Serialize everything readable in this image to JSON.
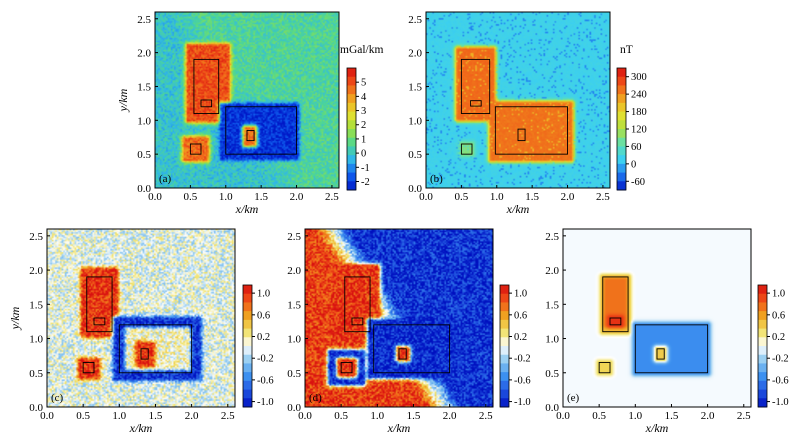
{
  "axis_tick_labels": [
    "0.0",
    "0.5",
    "1.0",
    "1.5",
    "2.0",
    "2.5"
  ],
  "chart_data": [
    {
      "type": "heatmap",
      "panel_label": "(a)",
      "xlabel": "x/km",
      "ylabel": "y/km",
      "xlim": [
        0,
        2.6
      ],
      "ylim": [
        0,
        2.6
      ],
      "unit": "mGal/km",
      "colorbar_ticks": [
        "5",
        "4",
        "3",
        "2",
        "1",
        "0",
        "-1",
        "-2"
      ],
      "colorbar_values": [
        5,
        4,
        3,
        2,
        1,
        0,
        -1,
        -2
      ],
      "colorbar_range": [
        -2.6,
        6
      ],
      "colorbar_colors": [
        "#0018c8",
        "#1060f0",
        "#30b8e8",
        "#50d890",
        "#a0e040",
        "#e8e030",
        "#f0a020",
        "#f05018",
        "#d81010"
      ],
      "field": {
        "background": -0.1,
        "background_east": 0.5,
        "noise": "random",
        "features": [
          {
            "shape": "rounded-rect",
            "x": [
              0.47,
              1.03
            ],
            "y": [
              1.0,
              2.1
            ],
            "value": 5
          },
          {
            "shape": "rounded-rect",
            "x": [
              0.95,
              2.0
            ],
            "y": [
              0.45,
              1.22
            ],
            "value": -2.2
          },
          {
            "shape": "rounded-rect",
            "x": [
              1.28,
              1.4
            ],
            "y": [
              0.65,
              0.88
            ],
            "value": 4.5
          },
          {
            "shape": "rounded-rect",
            "x": [
              0.42,
              0.73
            ],
            "y": [
              0.42,
              0.73
            ],
            "value": 4.6
          }
        ]
      },
      "boxes": [
        {
          "x": [
            0.55,
            0.9
          ],
          "y": [
            1.1,
            1.9
          ]
        },
        {
          "x": [
            0.65,
            0.8
          ],
          "y": [
            1.2,
            1.3
          ]
        },
        {
          "x": [
            1.0,
            2.0
          ],
          "y": [
            0.5,
            1.2
          ]
        },
        {
          "x": [
            1.3,
            1.4
          ],
          "y": [
            0.7,
            0.85
          ]
        },
        {
          "x": [
            0.5,
            0.65
          ],
          "y": [
            0.5,
            0.65
          ]
        }
      ]
    },
    {
      "type": "heatmap",
      "panel_label": "(b)",
      "xlabel": "x/km",
      "ylabel": "",
      "xlim": [
        0,
        2.6
      ],
      "ylim": [
        0,
        2.6
      ],
      "unit": "nT",
      "colorbar_ticks": [
        "300",
        "240",
        "180",
        "120",
        "60",
        "0",
        "-60"
      ],
      "colorbar_values": [
        300,
        240,
        180,
        120,
        60,
        0,
        -60
      ],
      "colorbar_range": [
        -90,
        330
      ],
      "colorbar_colors": [
        "#0018c8",
        "#1e78f0",
        "#3cd0f0",
        "#60e0b0",
        "#b0e040",
        "#e8e030",
        "#f0a020",
        "#f05018",
        "#d81010"
      ],
      "field": {
        "background": 20,
        "noise": "speckle",
        "features": [
          {
            "shape": "rounded-rect",
            "x": [
              0.45,
              0.95
            ],
            "y": [
              1.02,
              2.05
            ],
            "value": 260
          },
          {
            "shape": "rounded-rect",
            "x": [
              0.92,
              2.05
            ],
            "y": [
              0.42,
              1.25
            ],
            "value": 255
          },
          {
            "shape": "rounded-rect",
            "x": [
              0.5,
              0.65
            ],
            "y": [
              0.5,
              0.65
            ],
            "value": 90
          }
        ]
      },
      "boxes": [
        {
          "x": [
            0.5,
            0.9
          ],
          "y": [
            1.1,
            1.9
          ]
        },
        {
          "x": [
            0.63,
            0.78
          ],
          "y": [
            1.21,
            1.29
          ]
        },
        {
          "x": [
            0.98,
            2.0
          ],
          "y": [
            0.5,
            1.2
          ]
        },
        {
          "x": [
            1.3,
            1.4
          ],
          "y": [
            0.7,
            0.87
          ]
        },
        {
          "x": [
            0.5,
            0.65
          ],
          "y": [
            0.5,
            0.65
          ]
        }
      ]
    },
    {
      "type": "heatmap",
      "panel_label": "(c)",
      "xlabel": "x/km",
      "ylabel": "y/km",
      "xlim": [
        0,
        2.6
      ],
      "ylim": [
        0,
        2.6
      ],
      "unit": "",
      "colorbar_ticks": [
        "1.0",
        "0.6",
        "0.2",
        "-0.2",
        "-0.6",
        "-1.0"
      ],
      "colorbar_values": [
        1,
        0.6,
        0.2,
        -0.2,
        -0.6,
        -1
      ],
      "colorbar_range": [
        -1.1,
        1.15
      ],
      "colorbar_colors": [
        "#0010c0",
        "#1e50e0",
        "#3c90f0",
        "#8cc8f0",
        "#ffffff",
        "#f0e060",
        "#f0a020",
        "#f05018",
        "#d81010"
      ],
      "field": {
        "background": 0,
        "noise": "mottled",
        "features": [
          {
            "shape": "rounded-rect",
            "x": [
              0.5,
              0.95
            ],
            "y": [
              1.05,
              2.0
            ],
            "value": 1.0
          },
          {
            "shape": "rounded-rect",
            "x": [
              0.95,
              2.1
            ],
            "y": [
              0.42,
              1.28
            ],
            "value": -0.95
          },
          {
            "shape": "rounded-rect",
            "x": [
              1.12,
              1.95
            ],
            "y": [
              0.58,
              1.12
            ],
            "value": 0.1
          },
          {
            "shape": "rounded-rect",
            "x": [
              1.26,
              1.45
            ],
            "y": [
              0.62,
              0.92
            ],
            "value": 1.0
          },
          {
            "shape": "rounded-rect",
            "x": [
              0.46,
              0.7
            ],
            "y": [
              0.44,
              0.68
            ],
            "value": 1.0
          }
        ]
      },
      "boxes": [
        {
          "x": [
            0.55,
            0.9
          ],
          "y": [
            1.1,
            1.9
          ]
        },
        {
          "x": [
            0.65,
            0.8
          ],
          "y": [
            1.2,
            1.3
          ]
        },
        {
          "x": [
            1.0,
            2.0
          ],
          "y": [
            0.5,
            1.2
          ]
        },
        {
          "x": [
            1.3,
            1.4
          ],
          "y": [
            0.7,
            0.85
          ]
        },
        {
          "x": [
            0.5,
            0.65
          ],
          "y": [
            0.5,
            0.65
          ]
        }
      ]
    },
    {
      "type": "heatmap",
      "panel_label": "(d)",
      "xlabel": "x/km",
      "ylabel": "",
      "xlim": [
        0,
        2.6
      ],
      "ylim": [
        0,
        2.6
      ],
      "unit": "",
      "colorbar_ticks": [
        "1.0",
        "0.6",
        "0.2",
        "-0.2",
        "-0.6",
        "-1.0"
      ],
      "colorbar_values": [
        1,
        0.6,
        0.2,
        -0.2,
        -0.6,
        -1
      ],
      "colorbar_range": [
        -1.1,
        1.15
      ],
      "colorbar_colors": [
        "#0010c0",
        "#1e50e0",
        "#3c90f0",
        "#8cc8f0",
        "#ffffff",
        "#f0e060",
        "#f0a020",
        "#f05018",
        "#d81010"
      ],
      "field": {
        "background": 0.95,
        "background_east": -0.95,
        "noise": "mottled",
        "features": [
          {
            "shape": "rounded-rect",
            "x": [
              0.42,
              1.0
            ],
            "y": [
              1.0,
              2.05
            ],
            "value": 1.0
          },
          {
            "shape": "rounded-rect",
            "x": [
              0.9,
              2.05
            ],
            "y": [
              0.45,
              1.25
            ],
            "value": -1.0
          },
          {
            "shape": "rounded-rect",
            "x": [
              1.3,
              1.42
            ],
            "y": [
              0.7,
              0.85
            ],
            "value": 1.0
          },
          {
            "shape": "rounded-rect",
            "x": [
              0.35,
              0.8
            ],
            "y": [
              0.35,
              0.8
            ],
            "value": -1.0
          },
          {
            "shape": "rounded-rect",
            "x": [
              0.48,
              0.68
            ],
            "y": [
              0.47,
              0.68
            ],
            "value": 1.0
          }
        ]
      },
      "boxes": [
        {
          "x": [
            0.55,
            0.9
          ],
          "y": [
            1.1,
            1.9
          ]
        },
        {
          "x": [
            0.65,
            0.8
          ],
          "y": [
            1.2,
            1.3
          ]
        },
        {
          "x": [
            0.95,
            2.0
          ],
          "y": [
            0.5,
            1.2
          ]
        },
        {
          "x": [
            1.3,
            1.4
          ],
          "y": [
            0.7,
            0.85
          ]
        },
        {
          "x": [
            0.5,
            0.65
          ],
          "y": [
            0.5,
            0.65
          ]
        }
      ]
    },
    {
      "type": "heatmap",
      "panel_label": "(e)",
      "xlabel": "x/km",
      "ylabel": "",
      "xlim": [
        0,
        2.6
      ],
      "ylim": [
        0,
        2.6
      ],
      "unit": "",
      "colorbar_ticks": [
        "1.0",
        "0.6",
        "0.2",
        "-0.2",
        "-0.6",
        "-1.0"
      ],
      "colorbar_values": [
        1,
        0.6,
        0.2,
        -0.2,
        -0.6,
        -1
      ],
      "colorbar_range": [
        -1.1,
        1.15
      ],
      "colorbar_colors": [
        "#0010c0",
        "#1e50e0",
        "#3c90f0",
        "#8cc8f0",
        "#ffffff",
        "#f0e060",
        "#f0a020",
        "#f05018",
        "#d81010"
      ],
      "field": {
        "background": 0,
        "noise": "none",
        "features": [
          {
            "shape": "rounded-rect",
            "x": [
              0.55,
              0.9
            ],
            "y": [
              1.1,
              1.9
            ],
            "value": 0.45
          },
          {
            "shape": "rounded-rect",
            "x": [
              0.6,
              0.85
            ],
            "y": [
              1.2,
              1.85
            ],
            "value": 0.75
          },
          {
            "shape": "rounded-rect",
            "x": [
              0.65,
              0.8
            ],
            "y": [
              1.2,
              1.3
            ],
            "value": 1.0
          },
          {
            "shape": "rounded-rect",
            "x": [
              1.0,
              2.0
            ],
            "y": [
              0.5,
              1.2
            ],
            "value": -0.55
          },
          {
            "shape": "rounded-rect",
            "x": [
              1.3,
              1.4
            ],
            "y": [
              0.7,
              0.85
            ],
            "value": 0.4
          },
          {
            "shape": "rounded-rect",
            "x": [
              0.5,
              0.65
            ],
            "y": [
              0.5,
              0.65
            ],
            "value": 0.35
          }
        ]
      },
      "boxes": [
        {
          "x": [
            0.55,
            0.9
          ],
          "y": [
            1.1,
            1.9
          ]
        },
        {
          "x": [
            0.65,
            0.8
          ],
          "y": [
            1.2,
            1.3
          ]
        },
        {
          "x": [
            1.0,
            2.0
          ],
          "y": [
            0.5,
            1.2
          ]
        },
        {
          "x": [
            1.3,
            1.4
          ],
          "y": [
            0.7,
            0.85
          ]
        },
        {
          "x": [
            0.5,
            0.65
          ],
          "y": [
            0.5,
            0.65
          ]
        }
      ]
    }
  ]
}
